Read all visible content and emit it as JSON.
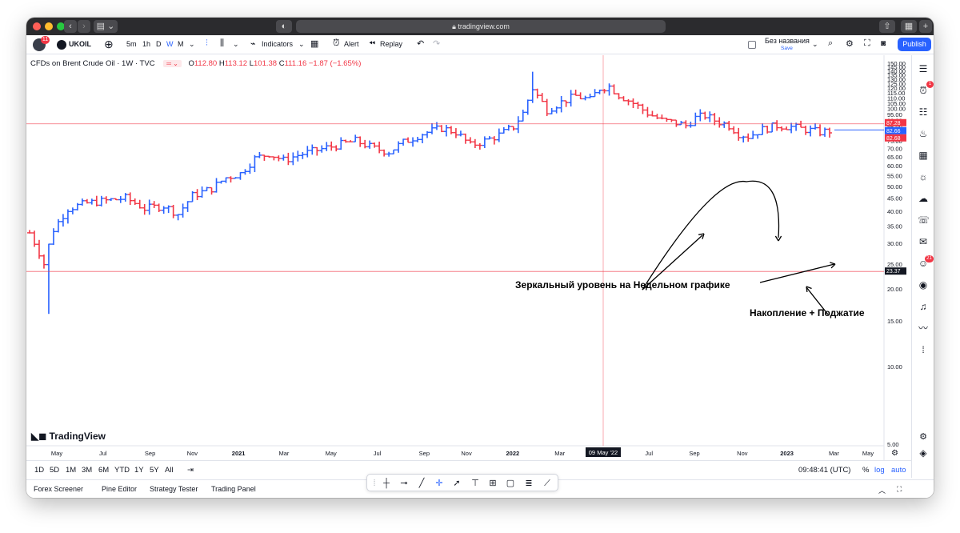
{
  "browser": {
    "url": "tradingview.com"
  },
  "toolbar": {
    "avatar_badge": "11",
    "symbol": "UKOIL",
    "intervals": [
      "5m",
      "1h",
      "D",
      "W",
      "M"
    ],
    "active_interval": "W",
    "indicators_label": "Indicators",
    "alert_label": "Alert",
    "replay_label": "Replay",
    "layout_name": "Без названия",
    "save_label": "Save",
    "publish_label": "Publish"
  },
  "legend": {
    "title": "CFDs on Brent Crude Oil · 1W · TVC",
    "open_label": "O",
    "open": "112.80",
    "high_label": "H",
    "high": "113.12",
    "low_label": "L",
    "low": "101.38",
    "close_label": "C",
    "close": "111.16",
    "change": "−1.87 (−1.65%)"
  },
  "chart_data": {
    "type": "ohlc",
    "title": "CFDs on Brent Crude Oil · 1W · TVC",
    "y_axis_ticks": [
      "150.00",
      "145.00",
      "140.00",
      "135.00",
      "130.00",
      "125.00",
      "120.00",
      "115.00",
      "110.00",
      "105.00",
      "100.00",
      "95.00",
      "90.00",
      "85.00",
      "80.00",
      "75.00",
      "70.00",
      "65.00",
      "60.00",
      "55.00",
      "50.00",
      "45.00",
      "40.00",
      "35.00",
      "30.00",
      "25.00",
      "20.00",
      "15.00",
      "10.00",
      "5.00"
    ],
    "x_axis_ticks": [
      "May",
      "Jul",
      "Sep",
      "Nov",
      "2021",
      "Mar",
      "May",
      "Jul",
      "Sep",
      "Nov",
      "2022",
      "Mar",
      "Jul",
      "Sep",
      "Nov",
      "2023",
      "Mar",
      "May"
    ],
    "ylim": [
      5,
      150
    ],
    "scale": "log",
    "price_path": [
      [
        0,
        33
      ],
      [
        3,
        25
      ],
      [
        5,
        34
      ],
      [
        8,
        41
      ],
      [
        12,
        43
      ],
      [
        16,
        44
      ],
      [
        20,
        45
      ],
      [
        24,
        41
      ],
      [
        28,
        42
      ],
      [
        31,
        39
      ],
      [
        34,
        46
      ],
      [
        38,
        49
      ],
      [
        41,
        54
      ],
      [
        44,
        56
      ],
      [
        47,
        64
      ],
      [
        50,
        67
      ],
      [
        53,
        63
      ],
      [
        56,
        66
      ],
      [
        60,
        69
      ],
      [
        64,
        72
      ],
      [
        68,
        75
      ],
      [
        72,
        70
      ],
      [
        75,
        68
      ],
      [
        78,
        74
      ],
      [
        82,
        80
      ],
      [
        86,
        84
      ],
      [
        89,
        81
      ],
      [
        92,
        72
      ],
      [
        95,
        75
      ],
      [
        98,
        79
      ],
      [
        101,
        85
      ],
      [
        103,
        96
      ],
      [
        105,
        120
      ],
      [
        106,
        112
      ],
      [
        108,
        99
      ],
      [
        111,
        106
      ],
      [
        114,
        112
      ],
      [
        117,
        108
      ],
      [
        119,
        120
      ],
      [
        121,
        122
      ],
      [
        123,
        113
      ],
      [
        126,
        105
      ],
      [
        129,
        96
      ],
      [
        132,
        90
      ],
      [
        135,
        88
      ],
      [
        137,
        86
      ],
      [
        139,
        92
      ],
      [
        141,
        94
      ],
      [
        143,
        90
      ],
      [
        146,
        86
      ],
      [
        148,
        80
      ],
      [
        150,
        78
      ],
      [
        153,
        83
      ],
      [
        156,
        86
      ],
      [
        159,
        85
      ],
      [
        162,
        83
      ],
      [
        165,
        81
      ],
      [
        167,
        82
      ]
    ],
    "horizontal_lines": [
      {
        "value": 87.28,
        "color": "#f23645"
      },
      {
        "value": 23.37,
        "color": "#f23645"
      },
      {
        "value": 82.68,
        "color": "#2962ff"
      }
    ],
    "price_labels": [
      {
        "value": "87.28",
        "color": "#f23645"
      },
      {
        "value": "82.66",
        "color": "#2962ff"
      },
      {
        "value": "82.68",
        "color": "#f23645"
      },
      {
        "value": "23.37",
        "color": "#131722"
      }
    ],
    "crosshair_date_label": "09 May '22",
    "up_color": "#2962ff",
    "down_color": "#f23645"
  },
  "annotations": {
    "mirror_level": "Зеркальный уровень на Недельном графике",
    "accumulation": "Накопление + Поджатие"
  },
  "branding": {
    "watermark": "TradingView"
  },
  "bottombar": {
    "ranges": [
      "1D",
      "5D",
      "1M",
      "3M",
      "6M",
      "YTD",
      "1Y",
      "5Y",
      "All"
    ],
    "clock": "09:48:41 (UTC)",
    "percent_label": "%",
    "log_label": "log",
    "auto_label": "auto"
  },
  "panels": {
    "items": [
      "Forex Screener",
      "Pine Editor",
      "Strategy Tester",
      "Trading Panel"
    ]
  },
  "rightbar": {
    "alerts_badge": "1",
    "chat_badge": "21"
  }
}
